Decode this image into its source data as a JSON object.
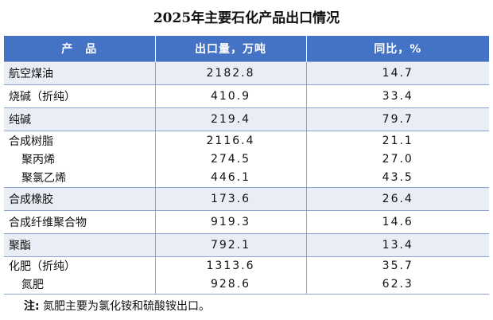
{
  "title": "2025年主要石化产品出口情况",
  "table": {
    "header": [
      "产　品",
      "出口量，万吨",
      "同比，%"
    ],
    "groups": [
      [
        [
          "航空煤油",
          "2182.8",
          "14.7"
        ]
      ],
      [
        [
          "烧碱（折纯）",
          "410.9",
          "33.4"
        ]
      ],
      [
        [
          "纯碱",
          "219.4",
          "79.7"
        ]
      ],
      [
        [
          "合成树脂",
          "2116.4",
          "21.1"
        ],
        [
          "聚丙烯",
          "274.5",
          "27.0"
        ],
        [
          "聚氯乙烯",
          "446.1",
          "43.5"
        ]
      ],
      [
        [
          "合成橡胶",
          "173.6",
          "26.4"
        ]
      ],
      [
        [
          "合成纤维聚合物",
          "919.3",
          "14.6"
        ]
      ],
      [
        [
          "聚酯",
          "792.1",
          "13.4"
        ]
      ],
      [
        [
          "化肥（折纯）",
          "1313.6",
          "35.7"
        ],
        [
          "氮肥",
          "928.6",
          "62.3"
        ]
      ]
    ]
  },
  "note": {
    "label": "注:",
    "text": "氮肥主要为氯化铵和硫酸铵出口。"
  }
}
